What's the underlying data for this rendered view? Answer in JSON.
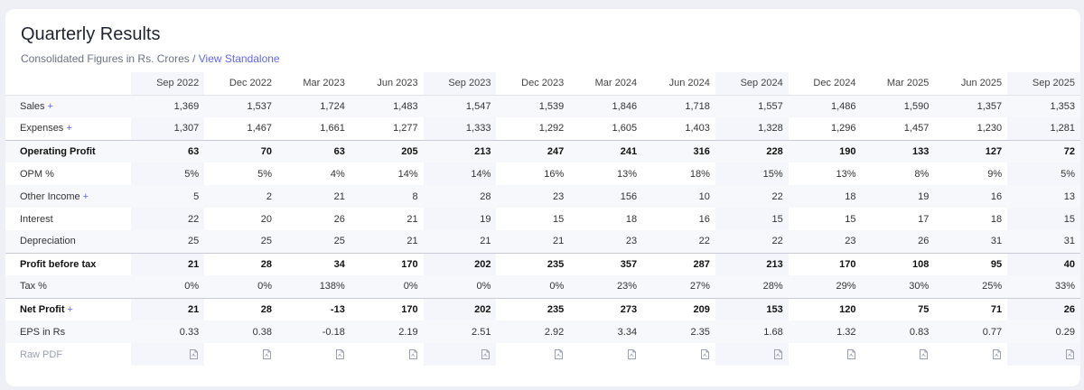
{
  "section": {
    "title": "Quarterly Results",
    "subtitle": "Consolidated Figures in Rs. Crores / ",
    "subtitle_link": "View Standalone"
  },
  "columns": [
    "Sep 2022",
    "Dec 2022",
    "Mar 2023",
    "Jun 2023",
    "Sep 2023",
    "Dec 2023",
    "Mar 2024",
    "Jun 2024",
    "Sep 2024",
    "Dec 2024",
    "Mar 2025",
    "Jun 2025",
    "Sep 2025"
  ],
  "rows": [
    {
      "label": "Sales",
      "expandable": true,
      "bold": false,
      "values": [
        "1,369",
        "1,537",
        "1,724",
        "1,483",
        "1,547",
        "1,539",
        "1,846",
        "1,718",
        "1,557",
        "1,486",
        "1,590",
        "1,357",
        "1,353"
      ]
    },
    {
      "label": "Expenses",
      "expandable": true,
      "bold": false,
      "values": [
        "1,307",
        "1,467",
        "1,661",
        "1,277",
        "1,333",
        "1,292",
        "1,605",
        "1,403",
        "1,328",
        "1,296",
        "1,457",
        "1,230",
        "1,281"
      ]
    },
    {
      "label": "Operating Profit",
      "expandable": false,
      "bold": true,
      "values": [
        "63",
        "70",
        "63",
        "205",
        "213",
        "247",
        "241",
        "316",
        "228",
        "190",
        "133",
        "127",
        "72"
      ]
    },
    {
      "label": "OPM %",
      "expandable": false,
      "bold": false,
      "values": [
        "5%",
        "5%",
        "4%",
        "14%",
        "14%",
        "16%",
        "13%",
        "18%",
        "15%",
        "13%",
        "8%",
        "9%",
        "5%"
      ]
    },
    {
      "label": "Other Income",
      "expandable": true,
      "bold": false,
      "values": [
        "5",
        "2",
        "21",
        "8",
        "28",
        "23",
        "156",
        "10",
        "22",
        "18",
        "19",
        "16",
        "13"
      ]
    },
    {
      "label": "Interest",
      "expandable": false,
      "bold": false,
      "values": [
        "22",
        "20",
        "26",
        "21",
        "19",
        "15",
        "18",
        "16",
        "15",
        "15",
        "17",
        "18",
        "15"
      ]
    },
    {
      "label": "Depreciation",
      "expandable": false,
      "bold": false,
      "values": [
        "25",
        "25",
        "25",
        "21",
        "21",
        "21",
        "23",
        "22",
        "22",
        "23",
        "26",
        "31",
        "31"
      ]
    },
    {
      "label": "Profit before tax",
      "expandable": false,
      "bold": true,
      "values": [
        "21",
        "28",
        "34",
        "170",
        "202",
        "235",
        "357",
        "287",
        "213",
        "170",
        "108",
        "95",
        "40"
      ]
    },
    {
      "label": "Tax %",
      "expandable": false,
      "bold": false,
      "values": [
        "0%",
        "0%",
        "138%",
        "0%",
        "0%",
        "0%",
        "23%",
        "27%",
        "28%",
        "29%",
        "30%",
        "25%",
        "33%"
      ]
    },
    {
      "label": "Net Profit",
      "expandable": true,
      "bold": true,
      "values": [
        "21",
        "28",
        "-13",
        "170",
        "202",
        "235",
        "273",
        "209",
        "153",
        "120",
        "75",
        "71",
        "26"
      ]
    },
    {
      "label": "EPS in Rs",
      "expandable": false,
      "bold": false,
      "values": [
        "0.33",
        "0.38",
        "-0.18",
        "2.19",
        "2.51",
        "2.92",
        "3.34",
        "2.35",
        "1.68",
        "1.32",
        "0.83",
        "0.77",
        "0.29"
      ]
    }
  ],
  "raw_pdf": {
    "label": "Raw PDF",
    "icon": "pdf-file-icon"
  },
  "plus_symbol": "+",
  "colors": {
    "accent": "#6366f1",
    "shade": "#f5f6fb",
    "background": "#eef0f6"
  }
}
